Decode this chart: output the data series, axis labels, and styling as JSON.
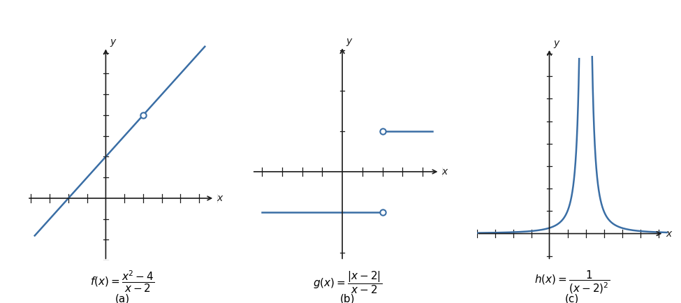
{
  "line_color": "#3a6ea5",
  "bg_color": "#ffffff",
  "axis_color": "#1a1a1a",
  "open_circle_face": "#ffffff",
  "line_width": 1.8,
  "circle_size": 6,
  "panel_a": {
    "xlim": [
      -4.2,
      6.0
    ],
    "ylim": [
      -3.0,
      7.5
    ],
    "xlabel": "x",
    "ylabel": "y",
    "title_latex": "$f(x) = \\dfrac{x^2 - 4}{x - 2}$",
    "label": "(a)",
    "hole_x": 2,
    "hole_y": 4,
    "line_xmin": -3.8,
    "line_xmax": 5.3
  },
  "panel_b": {
    "xlim": [
      -4.5,
      5.0
    ],
    "ylim": [
      -2.2,
      3.2
    ],
    "xlabel": "x",
    "ylabel": "y",
    "title_latex": "$g(x) = \\dfrac{|x - 2|}{x - 2}$",
    "label": "(b)",
    "upper_y": 1.0,
    "lower_y": -1.0,
    "hole_x": 2.0,
    "upper_xstart": 2.0,
    "upper_xend": 4.5,
    "lower_xstart": -4.0,
    "lower_xend": 2.0
  },
  "panel_c": {
    "xlim": [
      -4.0,
      6.5
    ],
    "ylim": [
      -1.2,
      8.5
    ],
    "xlabel": "x",
    "ylabel": "y",
    "title_latex": "$h(x) = \\dfrac{1}{(x - 2)^2}$",
    "label": "(c)",
    "asymptote_x": 2,
    "ymax_clip": 8.0
  }
}
